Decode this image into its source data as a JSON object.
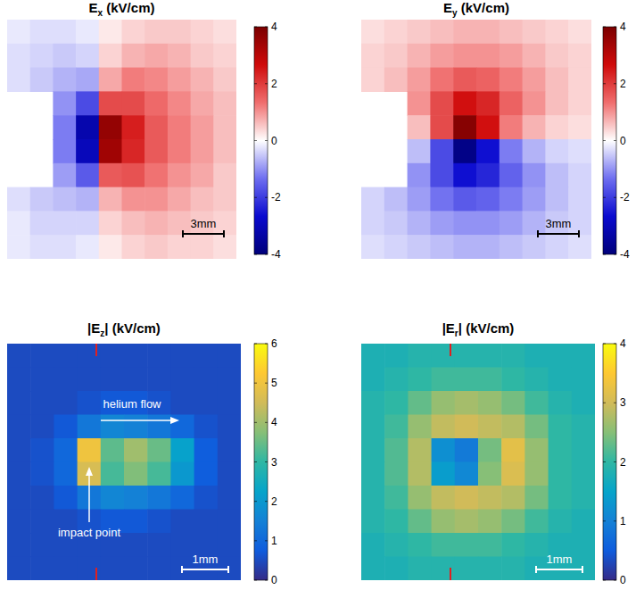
{
  "chart_data": [
    {
      "type": "heatmap",
      "title": "Ex (kV/cm)",
      "color": "bwr",
      "tick_labels": false,
      "scale_bar": "3mm",
      "colorbar_range": [
        -4,
        4
      ],
      "colorbar_ticks": [
        -4,
        -2,
        0,
        2,
        4
      ],
      "cells": [
        [
          -0.2,
          -0.3,
          -0.3,
          -0.2,
          0.2,
          0.4,
          0.5,
          0.5,
          0.4,
          0.3
        ],
        [
          -0.3,
          -0.4,
          -0.5,
          -0.4,
          0.4,
          0.7,
          0.8,
          0.7,
          0.5,
          0.4
        ],
        [
          -0.3,
          -0.5,
          -0.7,
          -0.8,
          0.8,
          1.2,
          1.1,
          0.9,
          0.7,
          0.5
        ],
        [
          null,
          null,
          -1.0,
          -1.8,
          1.8,
          1.8,
          1.4,
          1.1,
          0.8,
          0.6
        ],
        [
          null,
          null,
          -1.2,
          -3.2,
          3.6,
          2.4,
          1.6,
          1.2,
          0.9,
          0.6
        ],
        [
          null,
          null,
          -1.2,
          -3.0,
          3.4,
          2.3,
          1.6,
          1.2,
          0.9,
          0.6
        ],
        [
          null,
          null,
          -0.9,
          -1.6,
          1.6,
          1.7,
          1.3,
          1.0,
          0.8,
          0.5
        ],
        [
          -0.3,
          -0.5,
          -0.6,
          -0.7,
          0.7,
          1.0,
          1.0,
          0.8,
          0.6,
          0.5
        ],
        [
          -0.2,
          -0.4,
          -0.4,
          -0.4,
          0.4,
          0.6,
          0.7,
          0.6,
          0.5,
          0.4
        ],
        [
          -0.2,
          -0.3,
          -0.3,
          -0.2,
          0.2,
          0.4,
          0.5,
          0.4,
          0.4,
          0.3
        ]
      ]
    },
    {
      "type": "heatmap",
      "title": "Ey (kV/cm)",
      "color": "bwr",
      "tick_labels": false,
      "scale_bar": "3mm",
      "colorbar_range": [
        -4,
        4
      ],
      "colorbar_ticks": [
        -4,
        -2,
        0,
        2,
        4
      ],
      "cells": [
        [
          0.3,
          0.4,
          0.5,
          0.6,
          0.7,
          0.7,
          0.6,
          0.5,
          0.4,
          0.3
        ],
        [
          0.4,
          0.5,
          0.7,
          0.9,
          1.0,
          1.0,
          0.9,
          0.7,
          0.5,
          0.4
        ],
        [
          0.4,
          0.6,
          0.9,
          1.3,
          1.6,
          1.5,
          1.2,
          0.9,
          0.6,
          0.4
        ],
        [
          null,
          null,
          1.0,
          1.8,
          2.6,
          2.3,
          1.5,
          1.0,
          0.6,
          0.4
        ],
        [
          null,
          null,
          0.6,
          1.8,
          3.8,
          2.6,
          1.2,
          0.7,
          0.4,
          0.3
        ],
        [
          null,
          null,
          -0.6,
          -1.8,
          -3.8,
          -2.6,
          -1.2,
          -0.7,
          -0.4,
          -0.3
        ],
        [
          null,
          null,
          -1.0,
          -1.8,
          -2.6,
          -2.3,
          -1.5,
          -1.0,
          -0.6,
          -0.4
        ],
        [
          -0.4,
          -0.6,
          -0.9,
          -1.3,
          -1.6,
          -1.5,
          -1.2,
          -0.9,
          -0.6,
          -0.4
        ],
        [
          -0.4,
          -0.5,
          -0.7,
          -0.9,
          -1.0,
          -1.0,
          -0.9,
          -0.7,
          -0.5,
          -0.4
        ],
        [
          -0.3,
          -0.4,
          -0.5,
          -0.6,
          -0.7,
          -0.7,
          -0.6,
          -0.5,
          -0.4,
          -0.3
        ]
      ]
    },
    {
      "type": "heatmap",
      "title": "|Ez| (kV/cm)",
      "color": "parula",
      "tick_labels": false,
      "scale_bar": "1mm",
      "colorbar_range": [
        0,
        6
      ],
      "colorbar_ticks": [
        0,
        1,
        2,
        3,
        4,
        5,
        6
      ],
      "annotations": [
        {
          "text": "helium flow",
          "arrow": "right"
        },
        {
          "text": "impact point",
          "arrow": "up"
        }
      ],
      "cells": [
        [
          0.5,
          0.5,
          0.5,
          0.5,
          0.5,
          0.5,
          0.5,
          0.5,
          0.5,
          0.5
        ],
        [
          0.5,
          0.5,
          0.5,
          0.5,
          0.5,
          0.5,
          0.5,
          0.5,
          0.5,
          0.5
        ],
        [
          0.5,
          0.5,
          0.5,
          0.6,
          0.7,
          0.7,
          0.6,
          0.5,
          0.5,
          0.5
        ],
        [
          0.5,
          0.5,
          0.7,
          1.3,
          1.6,
          1.5,
          1.3,
          1.0,
          0.6,
          0.5
        ],
        [
          0.5,
          0.6,
          1.0,
          5.0,
          3.4,
          4.0,
          3.5,
          2.2,
          0.8,
          0.5
        ],
        [
          0.5,
          0.6,
          1.0,
          4.6,
          3.2,
          3.7,
          3.2,
          2.0,
          0.8,
          0.5
        ],
        [
          0.5,
          0.5,
          0.7,
          1.3,
          1.6,
          1.5,
          1.3,
          1.0,
          0.6,
          0.5
        ],
        [
          0.5,
          0.5,
          0.5,
          0.6,
          0.7,
          0.7,
          0.6,
          0.5,
          0.5,
          0.5
        ],
        [
          0.5,
          0.5,
          0.5,
          0.5,
          0.5,
          0.5,
          0.5,
          0.5,
          0.5,
          0.5
        ],
        [
          0.5,
          0.5,
          0.5,
          0.5,
          0.5,
          0.5,
          0.5,
          0.5,
          0.5,
          0.5
        ]
      ]
    },
    {
      "type": "heatmap",
      "title": "|Er| (kV/cm)",
      "color": "parula",
      "tick_labels": false,
      "scale_bar": "1mm",
      "colorbar_range": [
        0,
        4
      ],
      "colorbar_ticks": [
        0,
        1,
        2,
        3,
        4
      ],
      "cells": [
        [
          1.8,
          1.8,
          1.9,
          1.9,
          1.9,
          1.9,
          1.9,
          1.8,
          1.8,
          1.8
        ],
        [
          1.8,
          1.9,
          2.0,
          2.1,
          2.1,
          2.1,
          2.0,
          1.9,
          1.8,
          1.8
        ],
        [
          1.9,
          2.0,
          2.3,
          2.6,
          2.7,
          2.6,
          2.4,
          2.1,
          1.9,
          1.8
        ],
        [
          1.9,
          2.1,
          2.6,
          2.9,
          3.0,
          2.9,
          2.8,
          2.4,
          2.0,
          1.9
        ],
        [
          1.9,
          2.2,
          2.8,
          1.2,
          0.9,
          2.4,
          3.2,
          2.6,
          2.0,
          1.9
        ],
        [
          1.9,
          2.2,
          2.8,
          1.4,
          1.1,
          2.5,
          3.1,
          2.6,
          2.0,
          1.9
        ],
        [
          1.9,
          2.1,
          2.6,
          2.9,
          3.0,
          2.9,
          2.8,
          2.4,
          2.0,
          1.9
        ],
        [
          1.9,
          2.0,
          2.3,
          2.6,
          2.7,
          2.6,
          2.4,
          2.1,
          1.9,
          1.8
        ],
        [
          1.8,
          1.9,
          2.0,
          2.1,
          2.1,
          2.1,
          2.0,
          1.9,
          1.8,
          1.8
        ],
        [
          1.8,
          1.8,
          1.9,
          1.9,
          1.9,
          1.9,
          1.9,
          1.8,
          1.8,
          1.8
        ]
      ]
    }
  ]
}
